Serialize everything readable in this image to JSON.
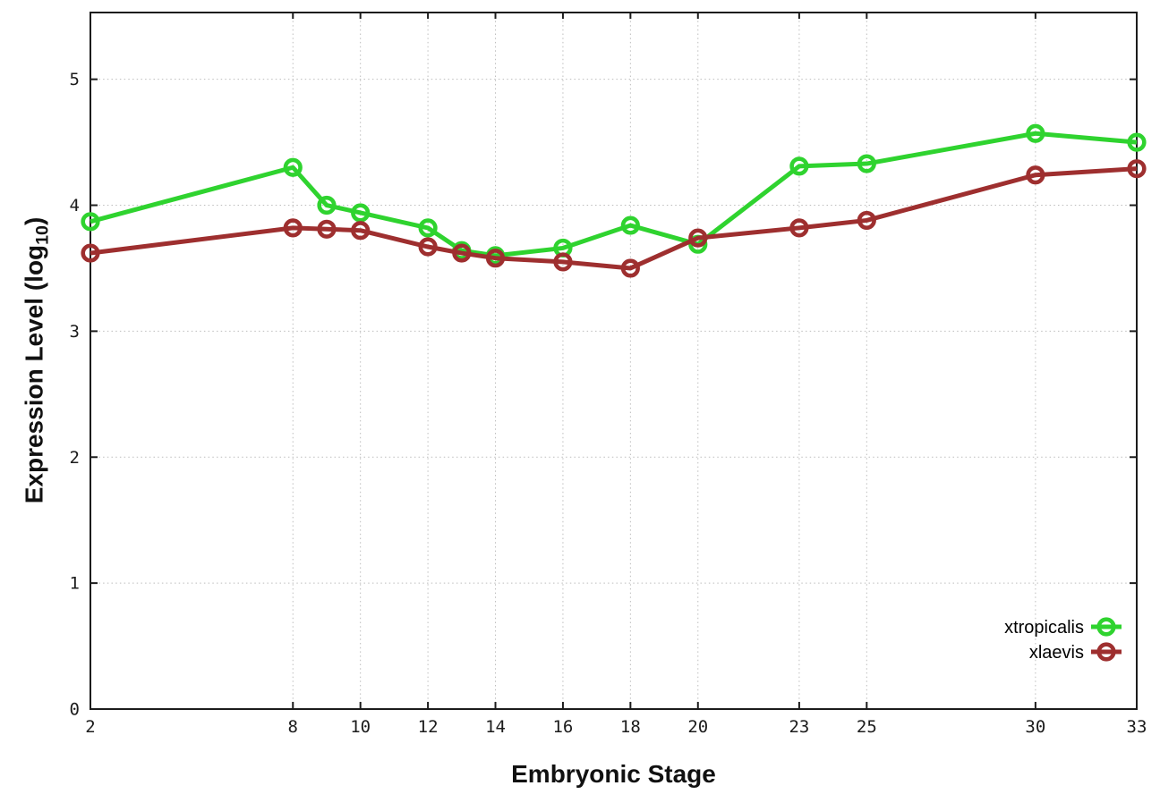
{
  "chart_data": {
    "type": "line",
    "title": "",
    "xlabel": "Embryonic Stage",
    "ylabel": "Expression Level (log10)",
    "ylabel_parts": {
      "prefix": "Expression Level (log",
      "subscript": "10",
      "suffix": ")"
    },
    "x": [
      2,
      8,
      9,
      10,
      12,
      13,
      14,
      16,
      18,
      20,
      23,
      25,
      30,
      33
    ],
    "x_axis_ticks": [
      2,
      8,
      10,
      12,
      14,
      16,
      18,
      20,
      23,
      25,
      30,
      33
    ],
    "y_axis_ticks": [
      0,
      1,
      2,
      3,
      4,
      5
    ],
    "xlim": [
      2,
      33
    ],
    "ylim": [
      0,
      5.53
    ],
    "grid": true,
    "legend_position": "inside-bottom-right",
    "series": [
      {
        "name": "xtropicalis",
        "color": "#2fd32f",
        "marker": "open-circle",
        "values": [
          3.87,
          4.3,
          4.0,
          3.94,
          3.82,
          3.64,
          3.6,
          3.66,
          3.84,
          3.69,
          4.31,
          4.33,
          4.57,
          4.5
        ]
      },
      {
        "name": "xlaevis",
        "color": "#9e2f2f",
        "marker": "open-circle",
        "values": [
          3.62,
          3.82,
          3.81,
          3.8,
          3.67,
          3.62,
          3.58,
          3.55,
          3.5,
          3.74,
          3.82,
          3.88,
          4.24,
          4.29
        ]
      }
    ],
    "colors": {
      "background": "#ffffff",
      "grid": "#bdbdbd",
      "axis": "#1c1c1c"
    }
  }
}
